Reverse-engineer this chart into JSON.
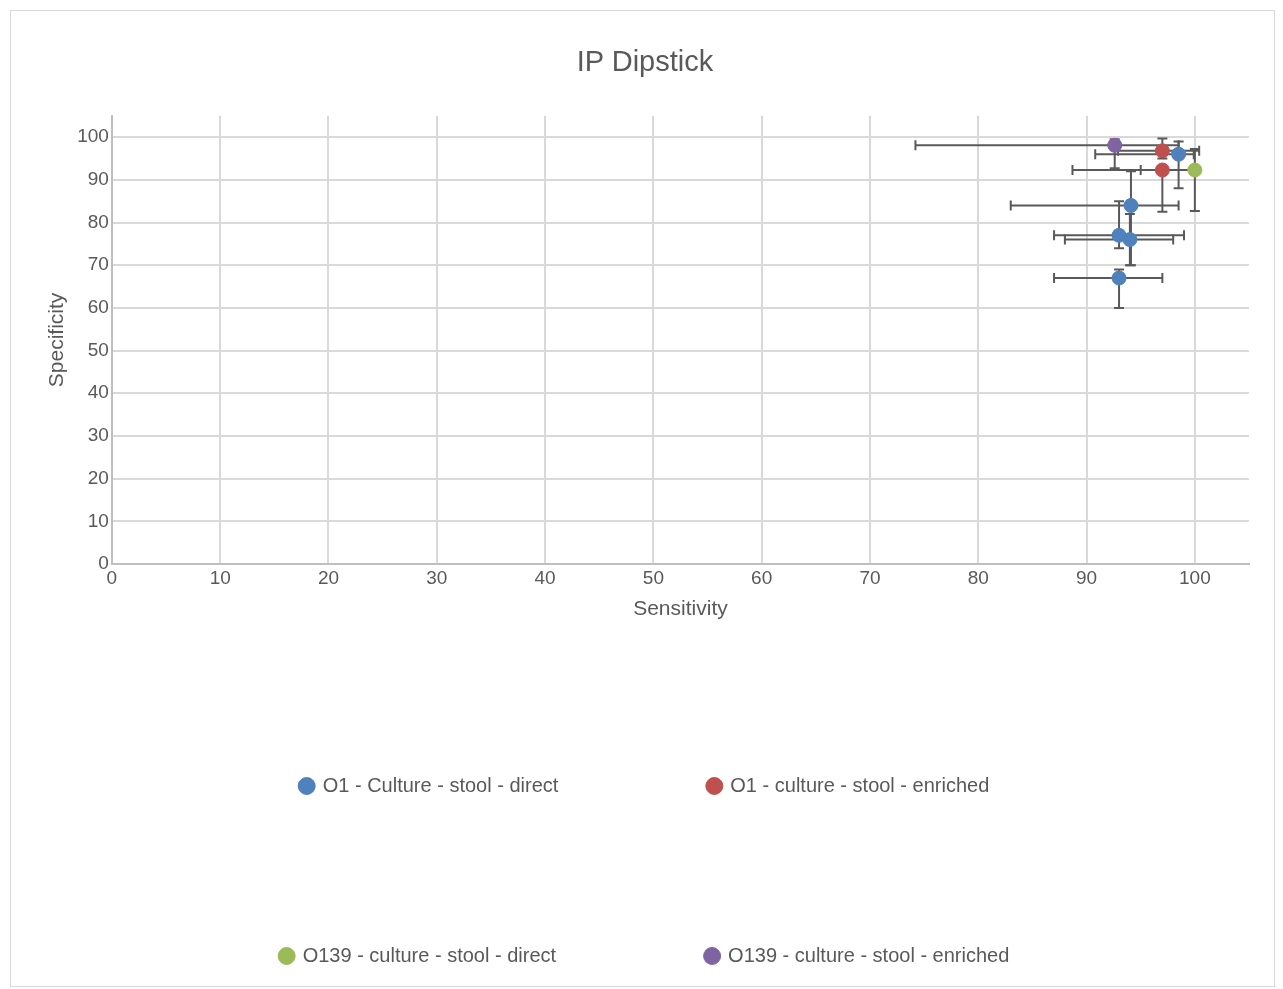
{
  "chart_data": {
    "type": "scatter",
    "title": "IP Dipstick",
    "xlabel": "Sensitivity",
    "ylabel": "Specificity",
    "xlim": [
      0,
      105
    ],
    "xticks": [
      0,
      10,
      20,
      30,
      40,
      50,
      60,
      70,
      80,
      90,
      100
    ],
    "ylim": [
      0,
      105
    ],
    "yticks": [
      0,
      10,
      20,
      30,
      40,
      50,
      60,
      70,
      80,
      90,
      100
    ],
    "grid": true,
    "legend": "bottom",
    "marker": "circle",
    "series": [
      {
        "name": "O1 - Culture - stool - direct",
        "color": "#4f81bd",
        "x": [
          98.5,
          94.1,
          93.0,
          94.0,
          93.0
        ],
        "values": [
          96,
          84,
          77,
          76,
          67
        ],
        "xerrors": [
          [
            90.8,
            99.9
          ],
          [
            83,
            98.5
          ],
          [
            87,
            99
          ],
          [
            88,
            98
          ],
          [
            87,
            97
          ]
        ],
        "errors": [
          [
            88,
            99
          ],
          [
            70,
            92
          ],
          [
            74,
            85
          ],
          [
            70,
            82
          ],
          [
            60,
            69
          ]
        ]
      },
      {
        "name": "O1 - culture - stool - enriched",
        "color": "#c0504d",
        "x": [
          97,
          97
        ],
        "values": [
          96.8,
          92.3
        ],
        "xerrors": [
          [
            92.9,
            100.4
          ],
          [
            88.7,
            97
          ]
        ],
        "errors": [
          [
            95,
            99.7
          ],
          [
            82.5,
            92.3
          ]
        ]
      },
      {
        "name": "O139 - culture - stool - direct",
        "color": "#9bbb59",
        "x": [
          100
        ],
        "values": [
          92.3
        ],
        "xerrors": [
          [
            95,
            100
          ]
        ],
        "errors": [
          [
            82.7,
            97.2
          ]
        ]
      },
      {
        "name": "O139 - culture - stool - enriched",
        "color": "#8064a2",
        "x": [
          92.6
        ],
        "values": [
          98.1
        ],
        "xerrors": [
          [
            74.2,
            98.5
          ]
        ],
        "errors": [
          [
            92.7,
            99.5
          ]
        ]
      }
    ]
  }
}
